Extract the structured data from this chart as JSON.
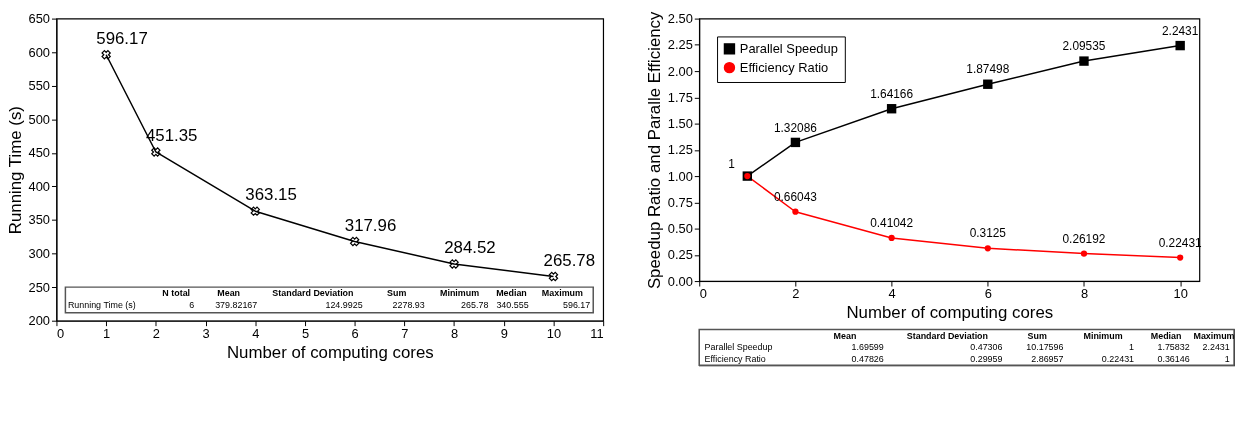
{
  "chart_data": [
    {
      "type": "line",
      "xlabel": "Number of computing cores",
      "ylabel": "Running Time (s)",
      "x": [
        1,
        2,
        4,
        6,
        8,
        10
      ],
      "series": [
        {
          "color": "#000000",
          "values": [
            596.17,
            451.35,
            363.15,
            317.96,
            284.52,
            265.78
          ]
        }
      ],
      "xlim": [
        0,
        11
      ],
      "xticks": [
        0,
        1,
        2,
        3,
        4,
        5,
        6,
        7,
        8,
        9,
        10,
        11
      ],
      "ylim": [
        200,
        650
      ],
      "yticks": [
        200,
        250,
        300,
        350,
        400,
        450,
        500,
        550,
        600,
        650
      ],
      "marker": "cross",
      "data_labels": true,
      "grid": false,
      "legend": false,
      "annotations": [
        "N total",
        "Mean",
        "Standard Deviation",
        "Sum",
        "Minimum",
        "Median",
        "Maximum",
        "Running Time (s)",
        "6",
        "379.82167",
        "124.9925",
        "2278.93",
        "265.78",
        "340.555",
        "596.17"
      ]
    },
    {
      "type": "line",
      "xlabel": "Number of computing cores",
      "ylabel": "Speedup Ratio and Paralle Efficiency",
      "x": [
        1,
        2,
        4,
        6,
        8,
        10
      ],
      "series": [
        {
          "name": "Parallel Speedup",
          "color": "#000000",
          "marker": "square",
          "values": [
            1,
            1.32086,
            1.64166,
            1.87498,
            2.09535,
            2.2431
          ],
          "value_labels": [
            null,
            "1.32086",
            "1.64166",
            "1.87498",
            "2.09535",
            "2.2431"
          ]
        },
        {
          "name": "Efficiency Ratio",
          "color": "#ff0000",
          "marker": "circle",
          "values": [
            1,
            0.66043,
            0.41042,
            0.3125,
            0.26192,
            0.22431
          ],
          "value_labels": [
            "1",
            "0.66043",
            "0.41042",
            "0.3125",
            "0.26192",
            "0.22431"
          ]
        }
      ],
      "xlim": [
        0,
        10.4
      ],
      "xticks": [
        0,
        2,
        4,
        6,
        8,
        10
      ],
      "ylim": [
        0,
        2.5
      ],
      "yticks": [
        {
          "value": 0,
          "label": "0.00"
        },
        0.25,
        {
          "value": 0.5,
          "label": "0.50"
        },
        0.75,
        {
          "value": 1,
          "label": "1.00"
        },
        1.25,
        {
          "value": 1.5,
          "label": "1.50"
        },
        1.75,
        {
          "value": 2,
          "label": "2.00"
        },
        2.25,
        {
          "value": 2.5,
          "label": "2.50"
        }
      ],
      "grid": false,
      "legend": "top left",
      "annotations": [
        "Mean",
        "Standard Deviation",
        "Sum",
        "Minimum",
        "Median",
        "Maximum",
        "Parallel Speedup",
        "1.69599",
        "0.47306",
        "10.17596",
        "1",
        "1.75832",
        "2.2431",
        "Efficiency Ratio",
        "0.47826",
        "0.29959",
        "2.86957",
        "0.22431",
        "0.36146",
        "1"
      ]
    }
  ]
}
